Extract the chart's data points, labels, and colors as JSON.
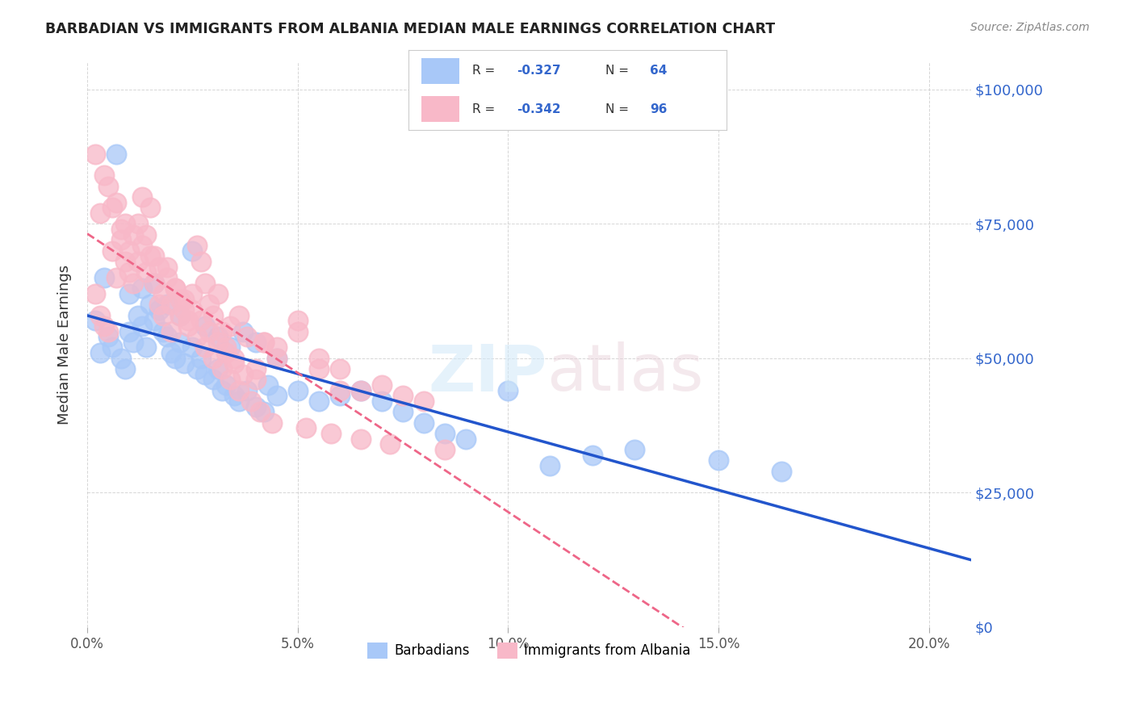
{
  "title": "BARBADIAN VS IMMIGRANTS FROM ALBANIA MEDIAN MALE EARNINGS CORRELATION CHART",
  "source": "Source: ZipAtlas.com",
  "ylabel": "Median Male Earnings",
  "xlabel_ticks": [
    "0.0%",
    "5.0%",
    "10.0%",
    "15.0%",
    "20.0%"
  ],
  "xlabel_vals": [
    0.0,
    5.0,
    10.0,
    15.0,
    20.0
  ],
  "ylabel_ticks": [
    "$0",
    "$25,000",
    "$50,000",
    "$75,000",
    "$100,000"
  ],
  "ylabel_vals": [
    0,
    25000,
    50000,
    75000,
    100000
  ],
  "ylim": [
    0,
    105000
  ],
  "xlim": [
    0,
    21
  ],
  "watermark": "ZIPatlas",
  "legend_r1": "R = -0.327   N = 64",
  "legend_r2": "R = -0.342   N = 96",
  "barbadian_color": "#a8c8f8",
  "albania_color": "#f8b8c8",
  "trendline_barbadian_color": "#2255cc",
  "trendline_albania_color": "#ee6688",
  "barbadian_x": [
    0.3,
    0.5,
    0.6,
    0.8,
    0.9,
    1.0,
    1.1,
    1.2,
    1.3,
    1.4,
    1.5,
    1.6,
    1.7,
    1.8,
    1.9,
    2.0,
    2.1,
    2.2,
    2.3,
    2.5,
    2.6,
    2.7,
    2.8,
    3.0,
    3.1,
    3.2,
    3.3,
    3.5,
    3.6,
    3.8,
    4.0,
    4.2,
    4.3,
    4.5,
    5.0,
    5.5,
    6.0,
    6.5,
    7.0,
    7.5,
    8.0,
    8.5,
    9.0,
    10.0,
    11.0,
    12.0,
    13.0,
    15.0,
    16.5,
    0.2,
    0.4,
    0.7,
    1.0,
    1.3,
    1.6,
    1.9,
    2.2,
    2.5,
    2.8,
    3.1,
    3.4,
    3.7,
    4.0,
    4.5
  ],
  "barbadian_y": [
    51000,
    54000,
    52000,
    50000,
    48000,
    55000,
    53000,
    58000,
    56000,
    52000,
    60000,
    57000,
    59000,
    55000,
    54000,
    51000,
    50000,
    53000,
    49000,
    52000,
    48000,
    50000,
    47000,
    46000,
    48000,
    44000,
    45000,
    43000,
    42000,
    44000,
    41000,
    40000,
    45000,
    43000,
    44000,
    42000,
    43000,
    44000,
    42000,
    40000,
    38000,
    36000,
    35000,
    44000,
    30000,
    32000,
    33000,
    31000,
    29000,
    57000,
    65000,
    88000,
    62000,
    63000,
    64000,
    60000,
    58000,
    70000,
    56000,
    54000,
    52000,
    55000,
    53000,
    50000
  ],
  "albania_x": [
    0.2,
    0.3,
    0.4,
    0.5,
    0.6,
    0.7,
    0.8,
    0.9,
    1.0,
    1.1,
    1.2,
    1.3,
    1.4,
    1.5,
    1.6,
    1.7,
    1.8,
    1.9,
    2.0,
    2.1,
    2.2,
    2.3,
    2.4,
    2.5,
    2.6,
    2.7,
    2.8,
    2.9,
    3.0,
    3.1,
    3.2,
    3.3,
    3.4,
    3.5,
    3.6,
    3.8,
    4.0,
    4.2,
    4.5,
    5.0,
    5.5,
    6.0,
    6.5,
    7.0,
    7.5,
    8.0,
    0.3,
    0.5,
    0.7,
    0.9,
    1.1,
    1.3,
    1.5,
    1.7,
    1.9,
    2.1,
    2.3,
    2.5,
    2.7,
    2.9,
    3.1,
    3.3,
    3.5,
    3.7,
    4.0,
    4.2,
    4.5,
    5.0,
    5.5,
    6.0,
    0.2,
    0.4,
    0.6,
    0.8,
    1.0,
    1.2,
    1.4,
    1.6,
    1.8,
    2.0,
    2.2,
    2.4,
    2.6,
    2.8,
    3.0,
    3.2,
    3.4,
    3.6,
    3.9,
    4.1,
    4.4,
    5.2,
    5.8,
    6.5,
    7.2,
    8.5
  ],
  "albania_y": [
    62000,
    58000,
    56000,
    55000,
    70000,
    65000,
    72000,
    68000,
    66000,
    64000,
    75000,
    80000,
    73000,
    78000,
    69000,
    60000,
    58000,
    67000,
    55000,
    63000,
    61000,
    59000,
    57000,
    62000,
    71000,
    68000,
    64000,
    60000,
    58000,
    62000,
    55000,
    52000,
    56000,
    50000,
    58000,
    54000,
    48000,
    53000,
    52000,
    55000,
    50000,
    48000,
    44000,
    45000,
    43000,
    42000,
    77000,
    82000,
    79000,
    75000,
    73000,
    71000,
    69000,
    67000,
    65000,
    63000,
    61000,
    59000,
    57000,
    55000,
    53000,
    51000,
    49000,
    47000,
    46000,
    53000,
    50000,
    57000,
    48000,
    44000,
    88000,
    84000,
    78000,
    74000,
    70000,
    68000,
    66000,
    64000,
    62000,
    60000,
    58000,
    56000,
    54000,
    52000,
    50000,
    48000,
    46000,
    44000,
    42000,
    40000,
    38000,
    37000,
    36000,
    35000,
    34000,
    33000
  ]
}
